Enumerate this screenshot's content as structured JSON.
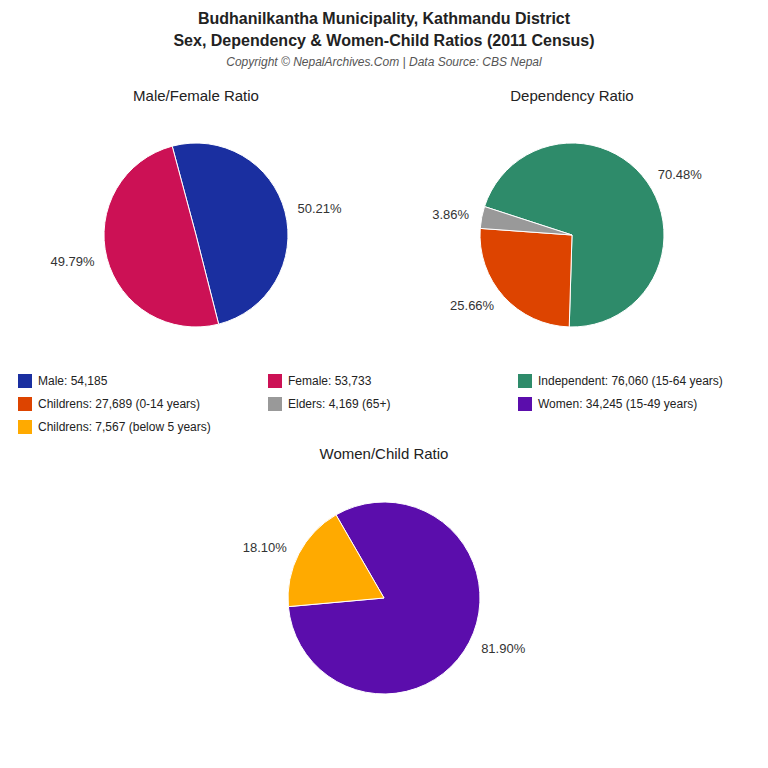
{
  "title": [
    "Budhanilkantha Municipality, Kathmandu District",
    "Sex, Dependency & Women-Child Ratios (2011 Census)"
  ],
  "subtitle": "Copyright © NepalArchives.Com | Data Source: CBS Nepal",
  "legend": "center",
  "chart_data": [
    {
      "type": "pie",
      "title": "Male/Female Ratio",
      "categories": [
        "Male: 54,185",
        "Female: 53,733"
      ],
      "values": [
        50.21,
        49.79
      ],
      "value_labels": [
        "50.21%",
        "49.79%"
      ],
      "colors": [
        "#1A2FA0",
        "#CC1155"
      ],
      "data_labels": true
    },
    {
      "type": "pie",
      "title": "Dependency Ratio",
      "categories": [
        "Independent: 76,060 (15-64 years)",
        "Childrens: 27,689 (0-14 years)",
        "Elders: 4,169 (65+)"
      ],
      "values": [
        70.48,
        25.66,
        3.86
      ],
      "value_labels": [
        "70.48%",
        "25.66%",
        "3.86%"
      ],
      "colors": [
        "#2E8B6A",
        "#DD4400",
        "#999999"
      ],
      "data_labels": true
    },
    {
      "type": "pie",
      "title": "Women/Child Ratio",
      "categories": [
        "Women: 34,245 (15-49 years)",
        "Childrens: 7,567 (below 5 years)"
      ],
      "values": [
        81.9,
        18.1
      ],
      "value_labels": [
        "81.90%",
        "18.10%"
      ],
      "colors": [
        "#5B0DAC",
        "#FFAA00"
      ],
      "data_labels": true
    }
  ]
}
